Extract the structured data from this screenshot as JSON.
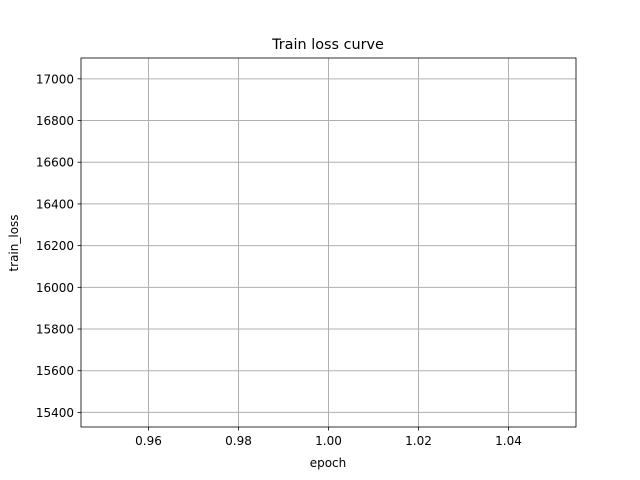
{
  "chart_data": {
    "type": "line",
    "title": "Train loss curve",
    "xlabel": "epoch",
    "ylabel": "train_loss",
    "xlim": [
      0.945,
      1.055
    ],
    "ylim": [
      15330,
      17100
    ],
    "x_ticks": [
      0.96,
      0.98,
      1.0,
      1.02,
      1.04
    ],
    "x_tick_labels": [
      "0.96",
      "0.98",
      "1.00",
      "1.02",
      "1.04"
    ],
    "y_ticks": [
      15400,
      15600,
      15800,
      16000,
      16200,
      16400,
      16600,
      16800,
      17000
    ],
    "y_tick_labels": [
      "15400",
      "15600",
      "15800",
      "16000",
      "16200",
      "16400",
      "16600",
      "16800",
      "17000"
    ],
    "grid": true,
    "series": [
      {
        "x": [],
        "y": []
      }
    ]
  }
}
